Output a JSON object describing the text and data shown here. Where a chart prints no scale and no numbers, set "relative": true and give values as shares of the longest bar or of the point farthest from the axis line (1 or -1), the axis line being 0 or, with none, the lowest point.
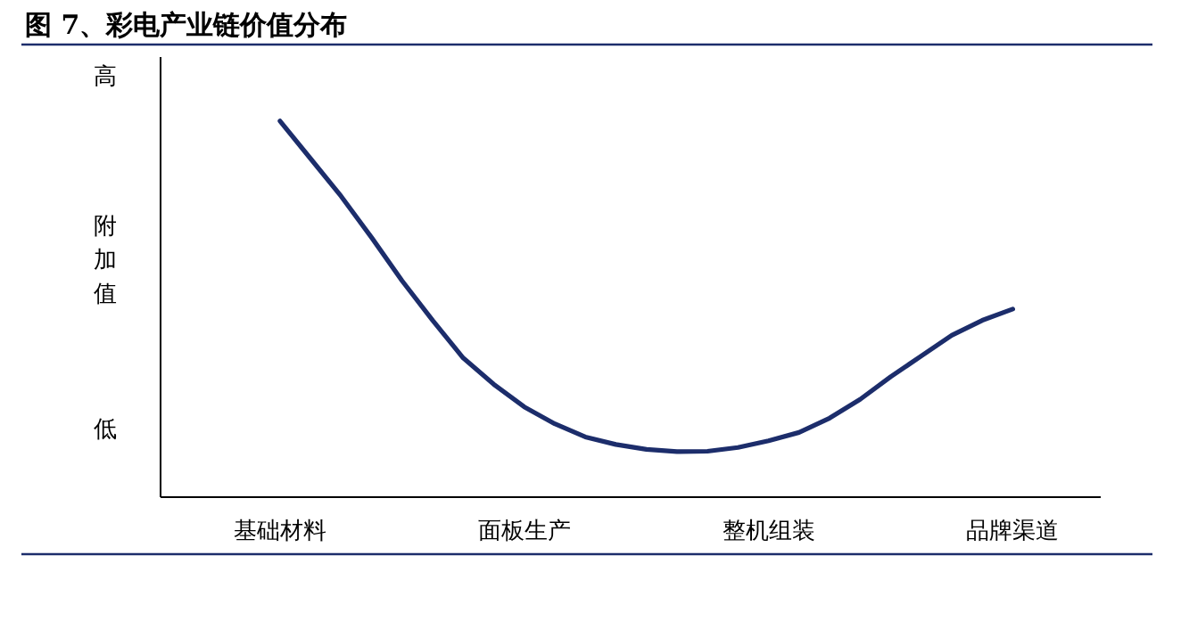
{
  "chart_data": {
    "type": "line",
    "title": "图 7、彩电产业链价值分布",
    "annotations": [
      "高",
      "附加值",
      "低"
    ],
    "categories": [
      "基础材料",
      null,
      null,
      null,
      null,
      null,
      null,
      null,
      "面板生产",
      null,
      null,
      null,
      null,
      null,
      null,
      null,
      "整机组装",
      null,
      null,
      null,
      null,
      null,
      null,
      null,
      "品牌渠道"
    ],
    "relative": true,
    "marker": "none",
    "line_style": "solid",
    "series": [
      {
        "color": "#1c2d6b",
        "values": [
          1.0,
          0.9,
          0.8,
          0.69,
          0.575,
          0.47,
          0.37,
          0.3,
          0.24,
          0.195,
          0.16,
          0.14,
          0.127,
          0.121,
          0.122,
          0.132,
          0.15,
          0.172,
          0.21,
          0.26,
          0.32,
          0.375,
          0.43,
          0.47,
          0.5
        ]
      }
    ]
  }
}
